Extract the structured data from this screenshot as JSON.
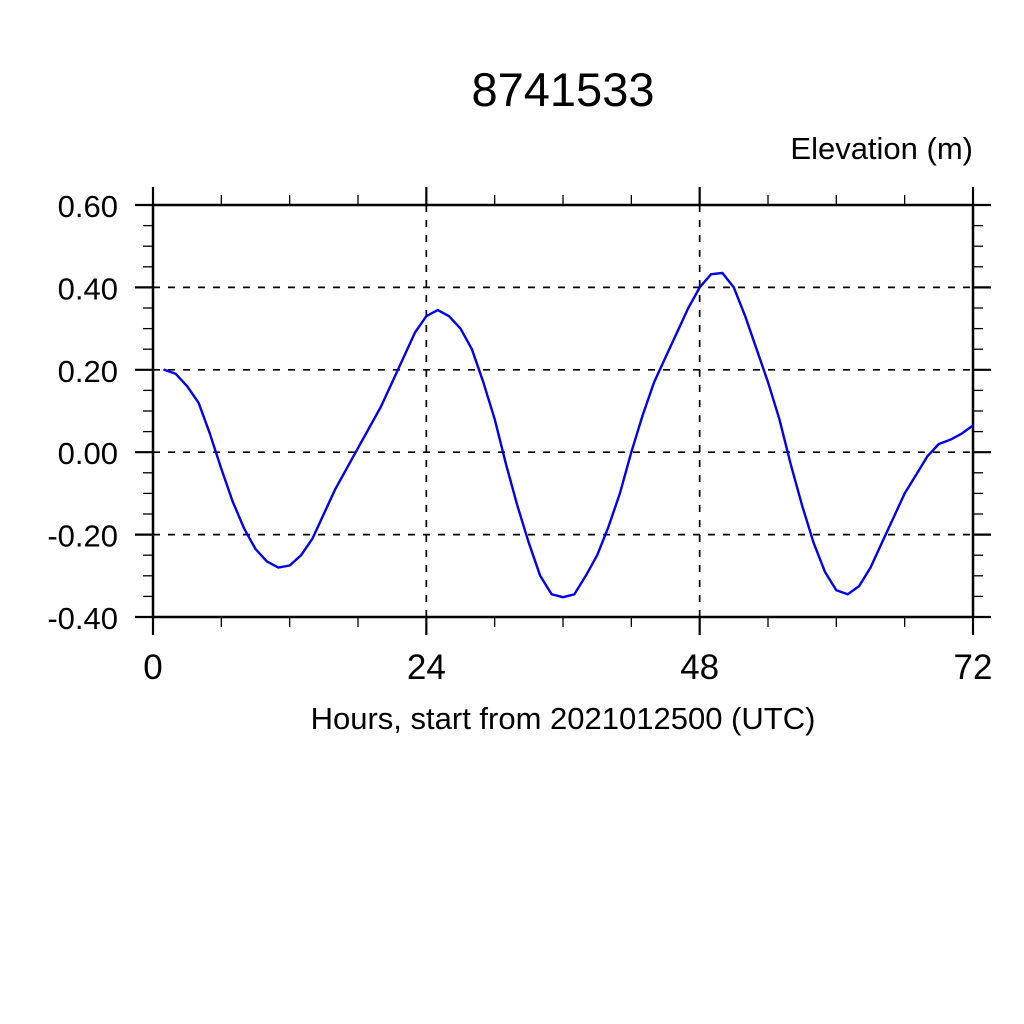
{
  "chart": {
    "title": "8741533",
    "y_axis_title": "Elevation (m)",
    "x_axis_label": "Hours, start from 2021012500 (UTC)"
  },
  "chart_data": {
    "type": "line",
    "title": "8741533",
    "ylabel": "Elevation (m)",
    "xlabel": "Hours, start from 2021012500 (UTC)",
    "xlim": [
      0,
      72
    ],
    "ylim": [
      -0.4,
      0.6
    ],
    "x_major_ticks": [
      0,
      24,
      48,
      72
    ],
    "x_tick_labels": [
      "0",
      "24",
      "48",
      "72"
    ],
    "x_minor_step": 6,
    "y_major_ticks": [
      0.6,
      0.4,
      0.2,
      0.0,
      -0.2,
      -0.4
    ],
    "y_tick_labels": [
      "0.60",
      "0.40",
      "0.20",
      "0.00",
      "-0.20",
      "-0.40"
    ],
    "y_minor_step": 0.05,
    "grid": {
      "style": "dashed",
      "horizontal_at": [
        0.4,
        0.2,
        0.0,
        -0.2
      ],
      "vertical_at": [
        24,
        48
      ]
    },
    "legend": "none",
    "line_color": "#0000EE",
    "axis_color": "#000000",
    "series": [
      {
        "name": "Elevation",
        "x": [
          1,
          2,
          3,
          4,
          5,
          6,
          7,
          8,
          9,
          10,
          11,
          12,
          13,
          14,
          15,
          16,
          17,
          18,
          19,
          20,
          21,
          22,
          23,
          24,
          25,
          26,
          27,
          28,
          29,
          30,
          31,
          32,
          33,
          34,
          35,
          36,
          37,
          38,
          39,
          40,
          41,
          42,
          43,
          44,
          45,
          46,
          47,
          48,
          49,
          50,
          51,
          52,
          53,
          54,
          55,
          56,
          57,
          58,
          59,
          60,
          61,
          62,
          63,
          64,
          65,
          66,
          67,
          68,
          69,
          70,
          71,
          72
        ],
        "y": [
          0.2,
          0.19,
          0.16,
          0.12,
          0.045,
          -0.04,
          -0.12,
          -0.185,
          -0.235,
          -0.265,
          -0.28,
          -0.275,
          -0.25,
          -0.21,
          -0.15,
          -0.09,
          -0.04,
          0.01,
          0.06,
          0.11,
          0.17,
          0.23,
          0.29,
          0.33,
          0.345,
          0.33,
          0.3,
          0.25,
          0.17,
          0.08,
          -0.03,
          -0.13,
          -0.22,
          -0.3,
          -0.345,
          -0.352,
          -0.345,
          -0.3,
          -0.25,
          -0.18,
          -0.1,
          0.0,
          0.09,
          0.17,
          0.23,
          0.29,
          0.35,
          0.4,
          0.432,
          0.435,
          0.4,
          0.33,
          0.25,
          0.17,
          0.08,
          -0.03,
          -0.13,
          -0.22,
          -0.29,
          -0.335,
          -0.345,
          -0.325,
          -0.28,
          -0.22,
          -0.16,
          -0.1,
          -0.055,
          -0.01,
          0.02,
          0.03,
          0.045,
          0.065
        ]
      }
    ]
  }
}
